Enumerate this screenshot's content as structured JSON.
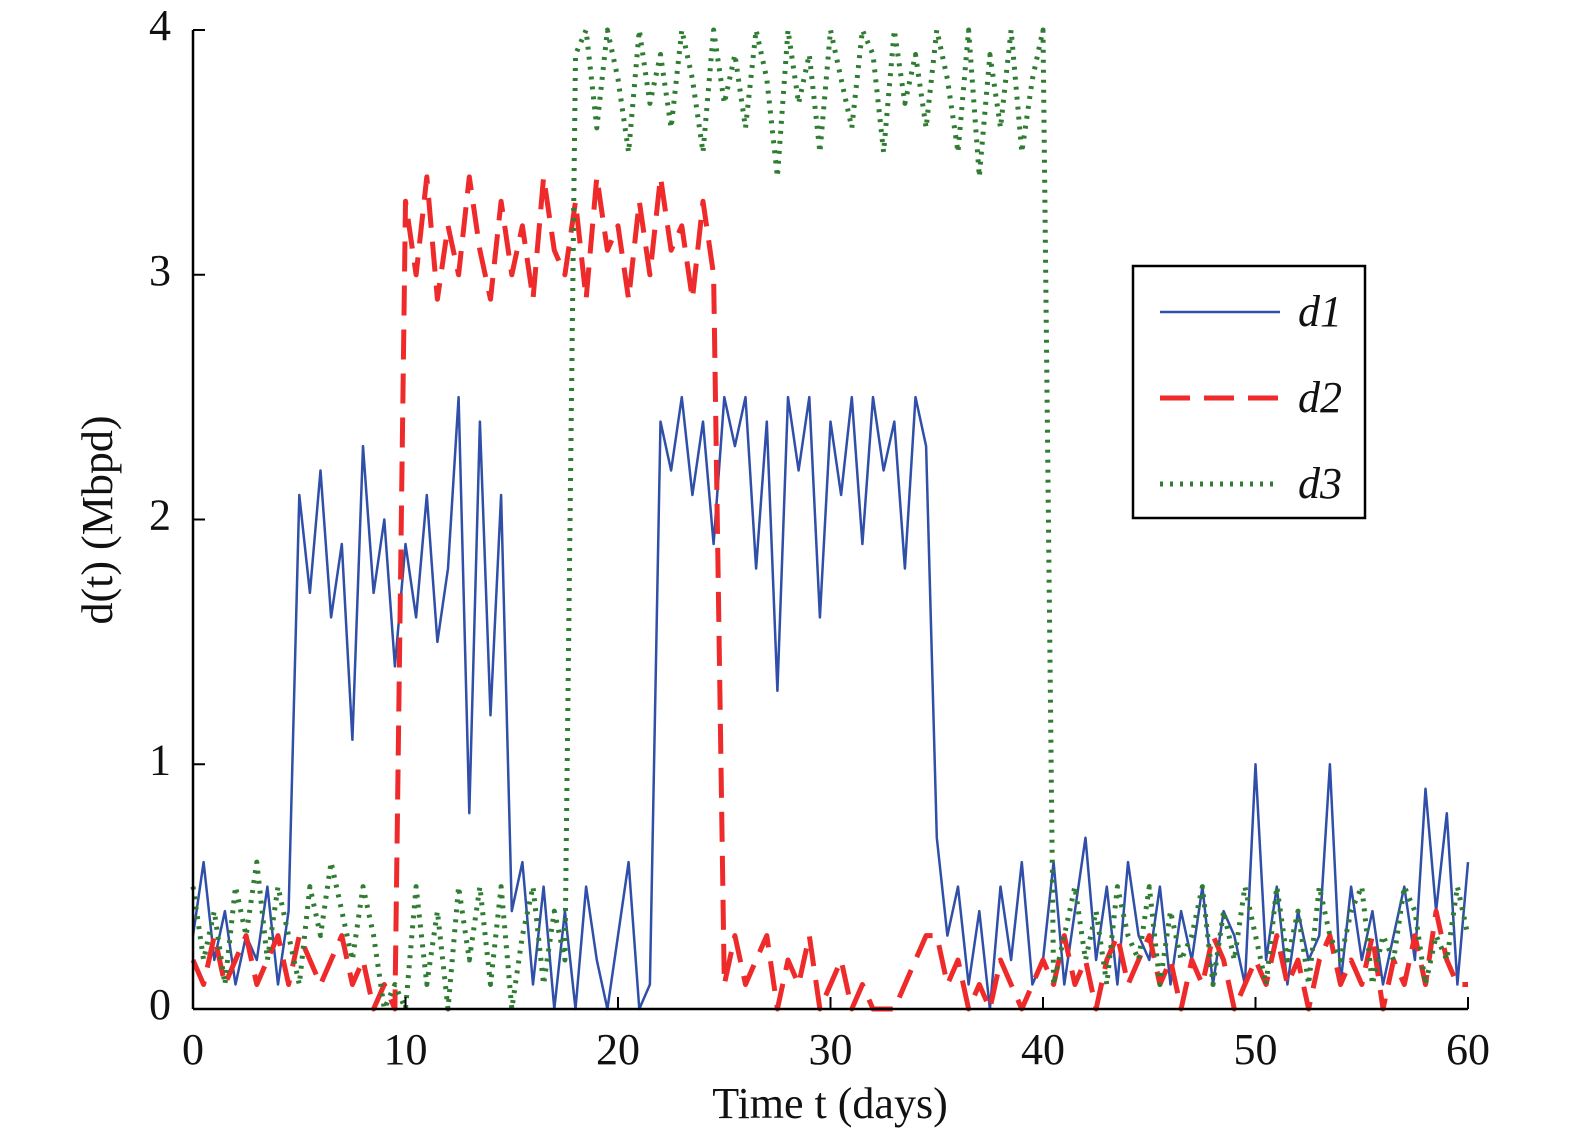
{
  "chart_data": {
    "type": "line",
    "xlabel": "Time t (days)",
    "ylabel": "d(t) (Mbpd)",
    "x": [
      0,
      0.5,
      1,
      1.5,
      2,
      2.5,
      3,
      3.5,
      4,
      4.5,
      5,
      5.5,
      6,
      6.5,
      7,
      7.5,
      8,
      8.5,
      9,
      9.5,
      10,
      10.5,
      11,
      11.5,
      12,
      12.5,
      13,
      13.5,
      14,
      14.5,
      15,
      15.5,
      16,
      16.5,
      17,
      17.5,
      18,
      18.5,
      19,
      19.5,
      20,
      20.5,
      21,
      21.5,
      22,
      22.5,
      23,
      23.5,
      24,
      24.5,
      25,
      25.5,
      26,
      26.5,
      27,
      27.5,
      28,
      28.5,
      29,
      29.5,
      30,
      30.5,
      31,
      31.5,
      32,
      32.5,
      33,
      33.5,
      34,
      34.5,
      35,
      35.5,
      36,
      36.5,
      37,
      37.5,
      38,
      38.5,
      39,
      39.5,
      40,
      40.5,
      41,
      41.5,
      42,
      42.5,
      43,
      43.5,
      44,
      44.5,
      45,
      45.5,
      46,
      46.5,
      47,
      47.5,
      48,
      48.5,
      49,
      49.5,
      50,
      50.5,
      51,
      51.5,
      52,
      52.5,
      53,
      53.5,
      54,
      54.5,
      55,
      55.5,
      56,
      56.5,
      57,
      57.5,
      58,
      58.5,
      59,
      59.5,
      60
    ],
    "series": [
      {
        "name": "d1",
        "color": "#2f4fa8",
        "dash": "solid",
        "values": [
          0.3,
          0.6,
          0.2,
          0.4,
          0.1,
          0.3,
          0.2,
          0.5,
          0.1,
          0.4,
          2.1,
          1.7,
          2.2,
          1.6,
          1.9,
          1.1,
          2.3,
          1.7,
          2.0,
          1.4,
          1.9,
          1.6,
          2.1,
          1.5,
          1.8,
          2.5,
          0.8,
          2.4,
          1.2,
          2.1,
          0.4,
          0.6,
          0.1,
          0.5,
          0,
          0.4,
          0,
          0.5,
          0.2,
          0,
          0.3,
          0.6,
          0,
          0.1,
          2.4,
          2.2,
          2.5,
          2.1,
          2.4,
          1.9,
          2.5,
          2.3,
          2.5,
          1.8,
          2.4,
          1.3,
          2.5,
          2.2,
          2.5,
          1.6,
          2.4,
          2.1,
          2.5,
          1.9,
          2.5,
          2.2,
          2.4,
          1.8,
          2.5,
          2.3,
          0.7,
          0.3,
          0.5,
          0.1,
          0.4,
          0,
          0.5,
          0.2,
          0.6,
          0.1,
          0.2,
          0.6,
          0.1,
          0.4,
          0.7,
          0.2,
          0.5,
          0.1,
          0.6,
          0.3,
          0.2,
          0.5,
          0.1,
          0.4,
          0.2,
          0.5,
          0.1,
          0.4,
          0.3,
          0.1,
          1.0,
          0.2,
          0.5,
          0.1,
          0.4,
          0.2,
          0.3,
          1.0,
          0.1,
          0.5,
          0.2,
          0.4,
          0.1,
          0.3,
          0.5,
          0.2,
          0.9,
          0.4,
          0.8,
          0.1,
          0.6
        ]
      },
      {
        "name": "d2",
        "color": "#ee2a2a",
        "dash": "dashed",
        "values": [
          0.2,
          0.1,
          0.3,
          0.1,
          0.2,
          0.3,
          0.1,
          0.2,
          0.3,
          0.1,
          0.3,
          0.2,
          0.1,
          0.2,
          0.3,
          0.1,
          0.2,
          0,
          0.1,
          0,
          3.3,
          3.0,
          3.4,
          2.9,
          3.2,
          3.0,
          3.4,
          3.1,
          2.9,
          3.3,
          3.0,
          3.2,
          2.9,
          3.4,
          3.1,
          3.0,
          3.3,
          2.9,
          3.4,
          3.1,
          3.2,
          2.9,
          3.3,
          3.0,
          3.4,
          3.1,
          3.2,
          2.9,
          3.3,
          3.0,
          0.1,
          0.3,
          0.1,
          0.2,
          0.3,
          0,
          0.2,
          0.1,
          0.3,
          0,
          0.1,
          0.2,
          0,
          0.1,
          0,
          0,
          0,
          0.1,
          0.2,
          0.3,
          0.3,
          0.1,
          0.2,
          0,
          0.1,
          0,
          0.2,
          0.1,
          0,
          0.1,
          0.2,
          0.1,
          0.3,
          0.1,
          0.2,
          0,
          0.2,
          0.3,
          0.1,
          0.2,
          0.3,
          0.1,
          0.2,
          0,
          0.2,
          0.1,
          0.3,
          0.2,
          0,
          0.1,
          0.2,
          0.1,
          0.3,
          0.1,
          0.2,
          0,
          0.2,
          0.3,
          0.1,
          0.2,
          0.1,
          0.3,
          0,
          0.2,
          0.1,
          0.3,
          0.1,
          0.4,
          0.2,
          0.1,
          0.1
        ]
      },
      {
        "name": "d3",
        "color": "#2f7d32",
        "dash": "dotted",
        "values": [
          0.5,
          0.2,
          0.4,
          0.1,
          0.5,
          0.3,
          0.6,
          0.2,
          0.5,
          0.3,
          0.1,
          0.5,
          0.3,
          0.6,
          0.4,
          0.2,
          0.5,
          0.3,
          0,
          0.1,
          0,
          0.5,
          0.1,
          0.4,
          0,
          0.5,
          0.2,
          0.5,
          0.1,
          0.5,
          0,
          0.3,
          0.5,
          0.1,
          0.4,
          0.2,
          3.9,
          4.0,
          3.6,
          4.0,
          3.8,
          3.5,
          4.0,
          3.7,
          3.9,
          3.6,
          4.0,
          3.8,
          3.5,
          4.0,
          3.7,
          3.9,
          3.6,
          4.0,
          3.8,
          3.4,
          4.0,
          3.7,
          3.9,
          3.5,
          4.0,
          3.8,
          3.6,
          4.0,
          3.9,
          3.5,
          4.0,
          3.7,
          3.9,
          3.6,
          4.0,
          3.8,
          3.5,
          4.0,
          3.4,
          3.9,
          3.6,
          4.0,
          3.5,
          3.8,
          4.0,
          0.1,
          0.3,
          0.5,
          0.2,
          0.4,
          0.1,
          0.5,
          0.3,
          0.2,
          0.5,
          0.1,
          0.4,
          0.2,
          0.3,
          0.5,
          0.1,
          0.4,
          0.2,
          0.5,
          0.3,
          0.1,
          0.5,
          0.2,
          0.4,
          0.1,
          0.5,
          0.3,
          0.2,
          0.4,
          0.5,
          0.1,
          0.3,
          0.2,
          0.5,
          0.4,
          0.1,
          0.3,
          0.2,
          0.5,
          0.3
        ]
      }
    ],
    "xlim": [
      0,
      60
    ],
    "xticks": [
      0,
      10,
      20,
      30,
      40,
      50,
      60
    ],
    "ylim": [
      0,
      4
    ],
    "yticks": [
      0,
      1,
      2,
      3,
      4
    ],
    "legend": "upper right",
    "grid": false
  }
}
